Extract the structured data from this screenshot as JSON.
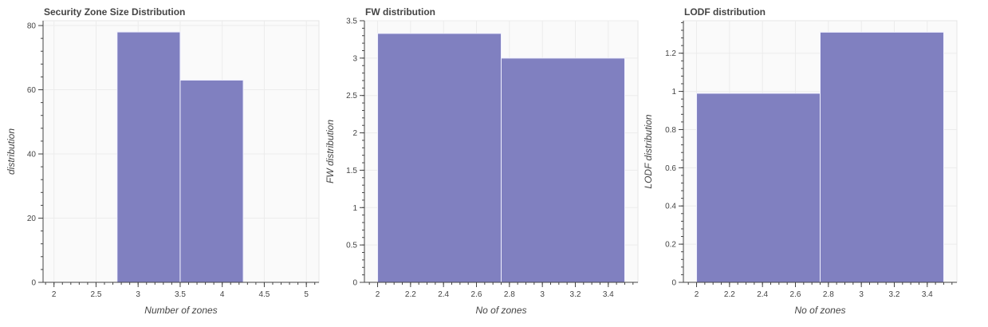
{
  "style": {
    "bar_fill": "#8080c0",
    "bar_edge": "#f0f0ff",
    "plot_background": "#fafafa",
    "grid_color": "#ececec",
    "axis_color": "#444444",
    "text_color": "#444444"
  },
  "chart_data": [
    {
      "type": "bar",
      "title": "Security Zone Size Distribution",
      "xlabel": "Number of zones",
      "ylabel": "distribution",
      "xlim": [
        1.87,
        5.15
      ],
      "ylim": [
        0,
        81.5
      ],
      "x_ticks": [
        2,
        2.5,
        3,
        3.5,
        4,
        4.5,
        5
      ],
      "x_tick_labels": [
        "2",
        "2.5",
        "3",
        "3.5",
        "4",
        "4.5",
        "5"
      ],
      "x_minor_step": 0.1,
      "y_ticks": [
        0,
        20,
        40,
        60,
        80
      ],
      "y_tick_labels": [
        "0",
        "20",
        "40",
        "60",
        "80"
      ],
      "y_minor_step": 4,
      "bins": [
        {
          "left": 2.75,
          "right": 3.5,
          "value": 78
        },
        {
          "left": 3.5,
          "right": 4.25,
          "value": 63
        }
      ],
      "grid": true
    },
    {
      "type": "bar",
      "title": "FW distribution",
      "xlabel": "No of zones",
      "ylabel": "FW distribution",
      "xlim": [
        1.92,
        3.58
      ],
      "ylim": [
        0,
        3.5
      ],
      "x_ticks": [
        2,
        2.2,
        2.4,
        2.6,
        2.8,
        3,
        3.2,
        3.4
      ],
      "x_tick_labels": [
        "2",
        "2.2",
        "2.4",
        "2.6",
        "2.8",
        "3",
        "3.2",
        "3.4"
      ],
      "x_minor_step": 0.05,
      "y_ticks": [
        0,
        0.5,
        1,
        1.5,
        2,
        2.5,
        3,
        3.5
      ],
      "y_tick_labels": [
        "0",
        "0.5",
        "1",
        "1.5",
        "2",
        "2.5",
        "3",
        "3.5"
      ],
      "y_minor_step": 0.1,
      "bins": [
        {
          "left": 2.0,
          "right": 2.75,
          "value": 3.33
        },
        {
          "left": 2.75,
          "right": 3.5,
          "value": 3.0
        }
      ],
      "grid": true
    },
    {
      "type": "bar",
      "title": "LODF distribution",
      "xlabel": "No of zones",
      "ylabel": "LODF distribution",
      "xlim": [
        1.92,
        3.58
      ],
      "ylim": [
        0,
        1.37
      ],
      "x_ticks": [
        2,
        2.2,
        2.4,
        2.6,
        2.8,
        3,
        3.2,
        3.4
      ],
      "x_tick_labels": [
        "2",
        "2.2",
        "2.4",
        "2.6",
        "2.8",
        "3",
        "3.2",
        "3.4"
      ],
      "x_minor_step": 0.05,
      "y_ticks": [
        0,
        0.2,
        0.4,
        0.6,
        0.8,
        1,
        1.2
      ],
      "y_tick_labels": [
        "0",
        "0.2",
        "0.4",
        "0.6",
        "0.8",
        "1",
        "1.2"
      ],
      "y_minor_step": 0.04,
      "bins": [
        {
          "left": 2.0,
          "right": 2.75,
          "value": 0.99
        },
        {
          "left": 2.75,
          "right": 3.5,
          "value": 1.31
        }
      ],
      "grid": true
    }
  ]
}
